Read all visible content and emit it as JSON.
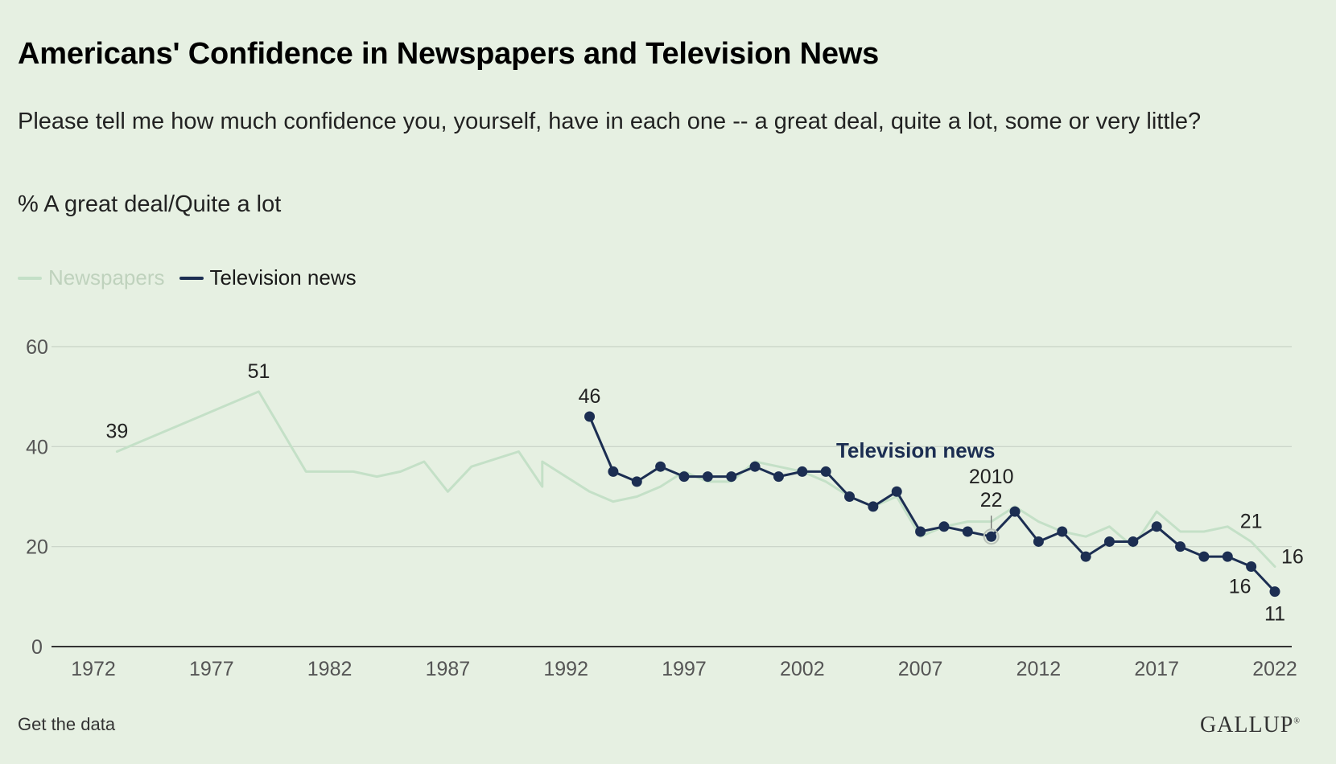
{
  "title": "Americans' Confidence in Newspapers and Television News",
  "subtitle": "Please tell me how much confidence you, yourself, have in each one -- a great deal, quite a lot, some or very little?",
  "measure": "% A great deal/Quite a lot",
  "footer": {
    "get_data_label": "Get the data",
    "logo_text": "GALLUP"
  },
  "colors": {
    "background": "#e6f0e2",
    "newspapers": "#c4e0c7",
    "television": "#1c2e52",
    "grid": "#c8d2c6",
    "legend_inactive_text": "#bfd2bd"
  },
  "legend": [
    {
      "name": "Newspapers",
      "active": false
    },
    {
      "name": "Television news",
      "active": true
    }
  ],
  "chart_data": {
    "type": "line",
    "x_ticks": [
      "1972",
      "1977",
      "1982",
      "1987",
      "1992",
      "1997",
      "2002",
      "2007",
      "2012",
      "2017",
      "2022"
    ],
    "y_ticks": [
      "0",
      "20",
      "40",
      "60"
    ],
    "xlim": [
      1972,
      2022
    ],
    "ylim": [
      0,
      60
    ],
    "grid": true,
    "legend_position": "top-left",
    "series": [
      {
        "name": "Newspapers",
        "color": "#c4e0c7",
        "markers": false,
        "points": [
          [
            1973,
            39
          ],
          [
            1979,
            51
          ],
          [
            1981,
            35
          ],
          [
            1983,
            35
          ],
          [
            1984,
            34
          ],
          [
            1985,
            35
          ],
          [
            1986,
            37
          ],
          [
            1987,
            31
          ],
          [
            1988,
            36
          ],
          [
            1990,
            39
          ],
          [
            1991,
            32
          ],
          [
            1991,
            37
          ],
          [
            1993,
            31
          ],
          [
            1994,
            29
          ],
          [
            1995,
            30
          ],
          [
            1996,
            32
          ],
          [
            1997,
            35
          ],
          [
            1998,
            33
          ],
          [
            1999,
            33
          ],
          [
            2000,
            37
          ],
          [
            2001,
            36
          ],
          [
            2002,
            35
          ],
          [
            2003,
            33
          ],
          [
            2004,
            30
          ],
          [
            2005,
            28
          ],
          [
            2006,
            30
          ],
          [
            2007,
            22
          ],
          [
            2008,
            24
          ],
          [
            2009,
            25
          ],
          [
            2010,
            25
          ],
          [
            2011,
            28
          ],
          [
            2012,
            25
          ],
          [
            2013,
            23
          ],
          [
            2014,
            22
          ],
          [
            2015,
            24
          ],
          [
            2016,
            20
          ],
          [
            2017,
            27
          ],
          [
            2018,
            23
          ],
          [
            2019,
            23
          ],
          [
            2020,
            24
          ],
          [
            2021,
            21
          ],
          [
            2022,
            16
          ]
        ],
        "labels": [
          {
            "x": 1973,
            "y": 39,
            "text": "39",
            "pos": "above"
          },
          {
            "x": 1979,
            "y": 51,
            "text": "51",
            "pos": "above"
          },
          {
            "x": 2021,
            "y": 21,
            "text": "21",
            "pos": "above"
          },
          {
            "x": 2022,
            "y": 16,
            "text": "16",
            "pos": "right"
          }
        ]
      },
      {
        "name": "Television news",
        "color": "#1c2e52",
        "markers": true,
        "points": [
          [
            1993,
            46
          ],
          [
            1994,
            35
          ],
          [
            1995,
            33
          ],
          [
            1996,
            36
          ],
          [
            1997,
            34
          ],
          [
            1998,
            34
          ],
          [
            1999,
            34
          ],
          [
            2000,
            36
          ],
          [
            2001,
            34
          ],
          [
            2002,
            35
          ],
          [
            2003,
            35
          ],
          [
            2004,
            30
          ],
          [
            2005,
            28
          ],
          [
            2006,
            31
          ],
          [
            2007,
            23
          ],
          [
            2008,
            24
          ],
          [
            2009,
            23
          ],
          [
            2010,
            22
          ],
          [
            2011,
            27
          ],
          [
            2012,
            21
          ],
          [
            2013,
            23
          ],
          [
            2014,
            18
          ],
          [
            2015,
            21
          ],
          [
            2016,
            21
          ],
          [
            2017,
            24
          ],
          [
            2018,
            20
          ],
          [
            2019,
            18
          ],
          [
            2020,
            18
          ],
          [
            2021,
            16
          ],
          [
            2022,
            11
          ]
        ],
        "labels": [
          {
            "x": 1993,
            "y": 46,
            "text": "46",
            "pos": "above"
          },
          {
            "x": 2021,
            "y": 16,
            "text": "16",
            "pos": "below-left"
          },
          {
            "x": 2022,
            "y": 11,
            "text": "11",
            "pos": "below"
          }
        ]
      }
    ],
    "annotation": {
      "series_label": "Television news",
      "year_text": "2010",
      "value_text": "22",
      "x": 2010,
      "y": 22
    }
  }
}
